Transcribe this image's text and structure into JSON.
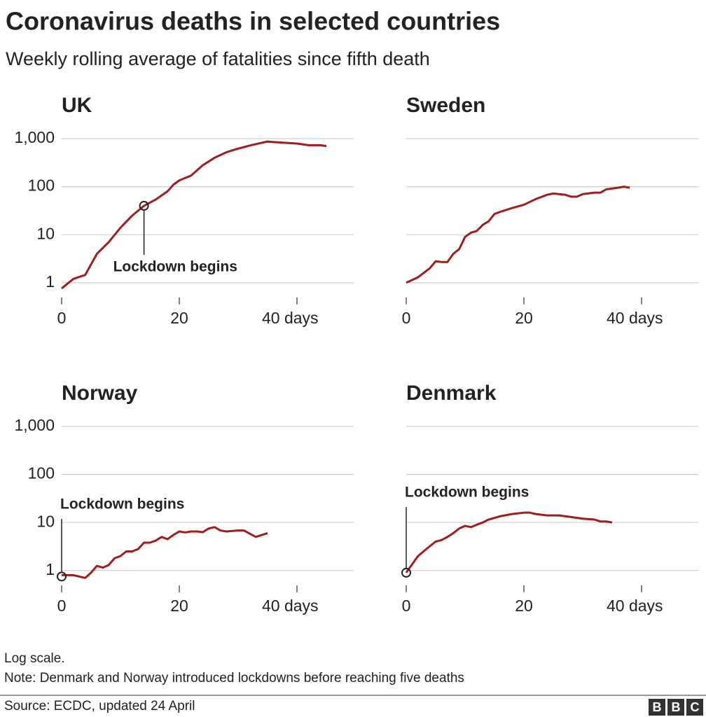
{
  "title": "Coronavirus deaths in selected countries",
  "subtitle": "Weekly rolling average of fatalities since fifth death",
  "chart_data": [
    {
      "type": "line",
      "title": "UK",
      "color": "#a11d1d",
      "log_scale": true,
      "grid": true,
      "x": [
        0,
        2,
        4,
        6,
        8,
        10,
        12,
        14,
        16,
        18,
        19,
        20,
        22,
        24,
        26,
        28,
        30,
        32,
        34,
        35,
        36,
        40,
        42,
        44,
        45
      ],
      "values": [
        0.76,
        1.2,
        1.45,
        4,
        7,
        14,
        25,
        40,
        54,
        80,
        110,
        135,
        170,
        280,
        400,
        520,
        620,
        720,
        820,
        870,
        850,
        790,
        730,
        730,
        700
      ],
      "xlim": [
        0,
        50
      ],
      "xticks": [
        0,
        20,
        {
          "value": 40,
          "label": "40 days"
        }
      ],
      "ylim": [
        0.6,
        1000
      ],
      "yticks": [
        1,
        10,
        100,
        {
          "value": 1000,
          "label": "1,000"
        }
      ],
      "annotation": {
        "text": "Lockdown begins",
        "x": 14,
        "y": 40
      }
    },
    {
      "type": "line",
      "title": "Sweden",
      "color": "#a11d1d",
      "log_scale": true,
      "grid": true,
      "x": [
        0,
        2,
        4,
        5,
        6,
        7,
        8,
        9,
        10,
        11,
        12,
        13,
        14,
        15,
        16,
        18,
        20,
        22,
        24,
        25,
        26,
        27,
        28,
        29,
        30,
        32,
        33,
        34,
        36,
        37,
        38
      ],
      "values": [
        1,
        1.3,
        2,
        2.8,
        2.7,
        2.7,
        4,
        5,
        9,
        11,
        12,
        16,
        19,
        27,
        30,
        36,
        42,
        55,
        68,
        72,
        70,
        68,
        62,
        62,
        70,
        75,
        75,
        88,
        95,
        100,
        95
      ],
      "xlim": [
        0,
        50
      ],
      "xticks": [
        0,
        20,
        {
          "value": 40,
          "label": "40 days"
        }
      ],
      "ylim": [
        0.6,
        1000
      ],
      "yticks": [
        1,
        10,
        100,
        {
          "value": 1000,
          "label": "1,000"
        }
      ]
    },
    {
      "type": "line",
      "title": "Norway",
      "color": "#a11d1d",
      "log_scale": true,
      "grid": true,
      "x": [
        0,
        2,
        4,
        5,
        6,
        7,
        8,
        9,
        10,
        11,
        12,
        13,
        14,
        15,
        16,
        17,
        18,
        19,
        20,
        21,
        22,
        23,
        24,
        25,
        26,
        27,
        28,
        30,
        31,
        33,
        35
      ],
      "values": [
        0.8,
        0.8,
        0.7,
        0.9,
        1.25,
        1.15,
        1.3,
        1.8,
        2,
        2.5,
        2.5,
        2.8,
        3.8,
        3.8,
        4.2,
        5,
        4.5,
        5.5,
        6.5,
        6.2,
        6.5,
        6.5,
        6.3,
        7.5,
        8,
        6.8,
        6.5,
        6.8,
        6.8,
        5,
        6
      ],
      "xlim": [
        0,
        50
      ],
      "xticks": [
        0,
        20,
        {
          "value": 40,
          "label": "40 days"
        }
      ],
      "ylim": [
        0.6,
        1000
      ],
      "yticks": [
        1,
        10,
        100,
        {
          "value": 1000,
          "label": "1,000"
        }
      ],
      "annotation": {
        "text": "Lockdown begins",
        "x": 0,
        "y": 0.75
      }
    },
    {
      "type": "line",
      "title": "Denmark",
      "color": "#a11d1d",
      "log_scale": true,
      "grid": true,
      "x": [
        0,
        2,
        4,
        5,
        6,
        7,
        8,
        9,
        10,
        11,
        12,
        13,
        14,
        16,
        18,
        20,
        21,
        22,
        24,
        26,
        28,
        30,
        32,
        33,
        34,
        35
      ],
      "values": [
        0.9,
        2,
        3.2,
        4,
        4.3,
        5,
        6,
        7.5,
        8.5,
        8,
        9,
        10,
        11.5,
        13.5,
        15,
        16,
        16,
        15,
        14,
        14,
        13,
        12,
        11.5,
        10.5,
        10.5,
        10
      ],
      "xlim": [
        0,
        50
      ],
      "xticks": [
        0,
        20,
        {
          "value": 40,
          "label": "40 days"
        }
      ],
      "ylim": [
        0.6,
        1000
      ],
      "yticks": [
        1,
        10,
        100,
        {
          "value": 1000,
          "label": "1,000"
        }
      ],
      "annotation": {
        "text": "Lockdown begins",
        "x": 0,
        "y": 0.9
      }
    }
  ],
  "notes": [
    "Log scale.",
    "Note: Denmark and Norway introduced lockdowns before reaching five deaths"
  ],
  "source": "Source: ECDC, updated 24 April",
  "logo": [
    "B",
    "B",
    "C"
  ]
}
